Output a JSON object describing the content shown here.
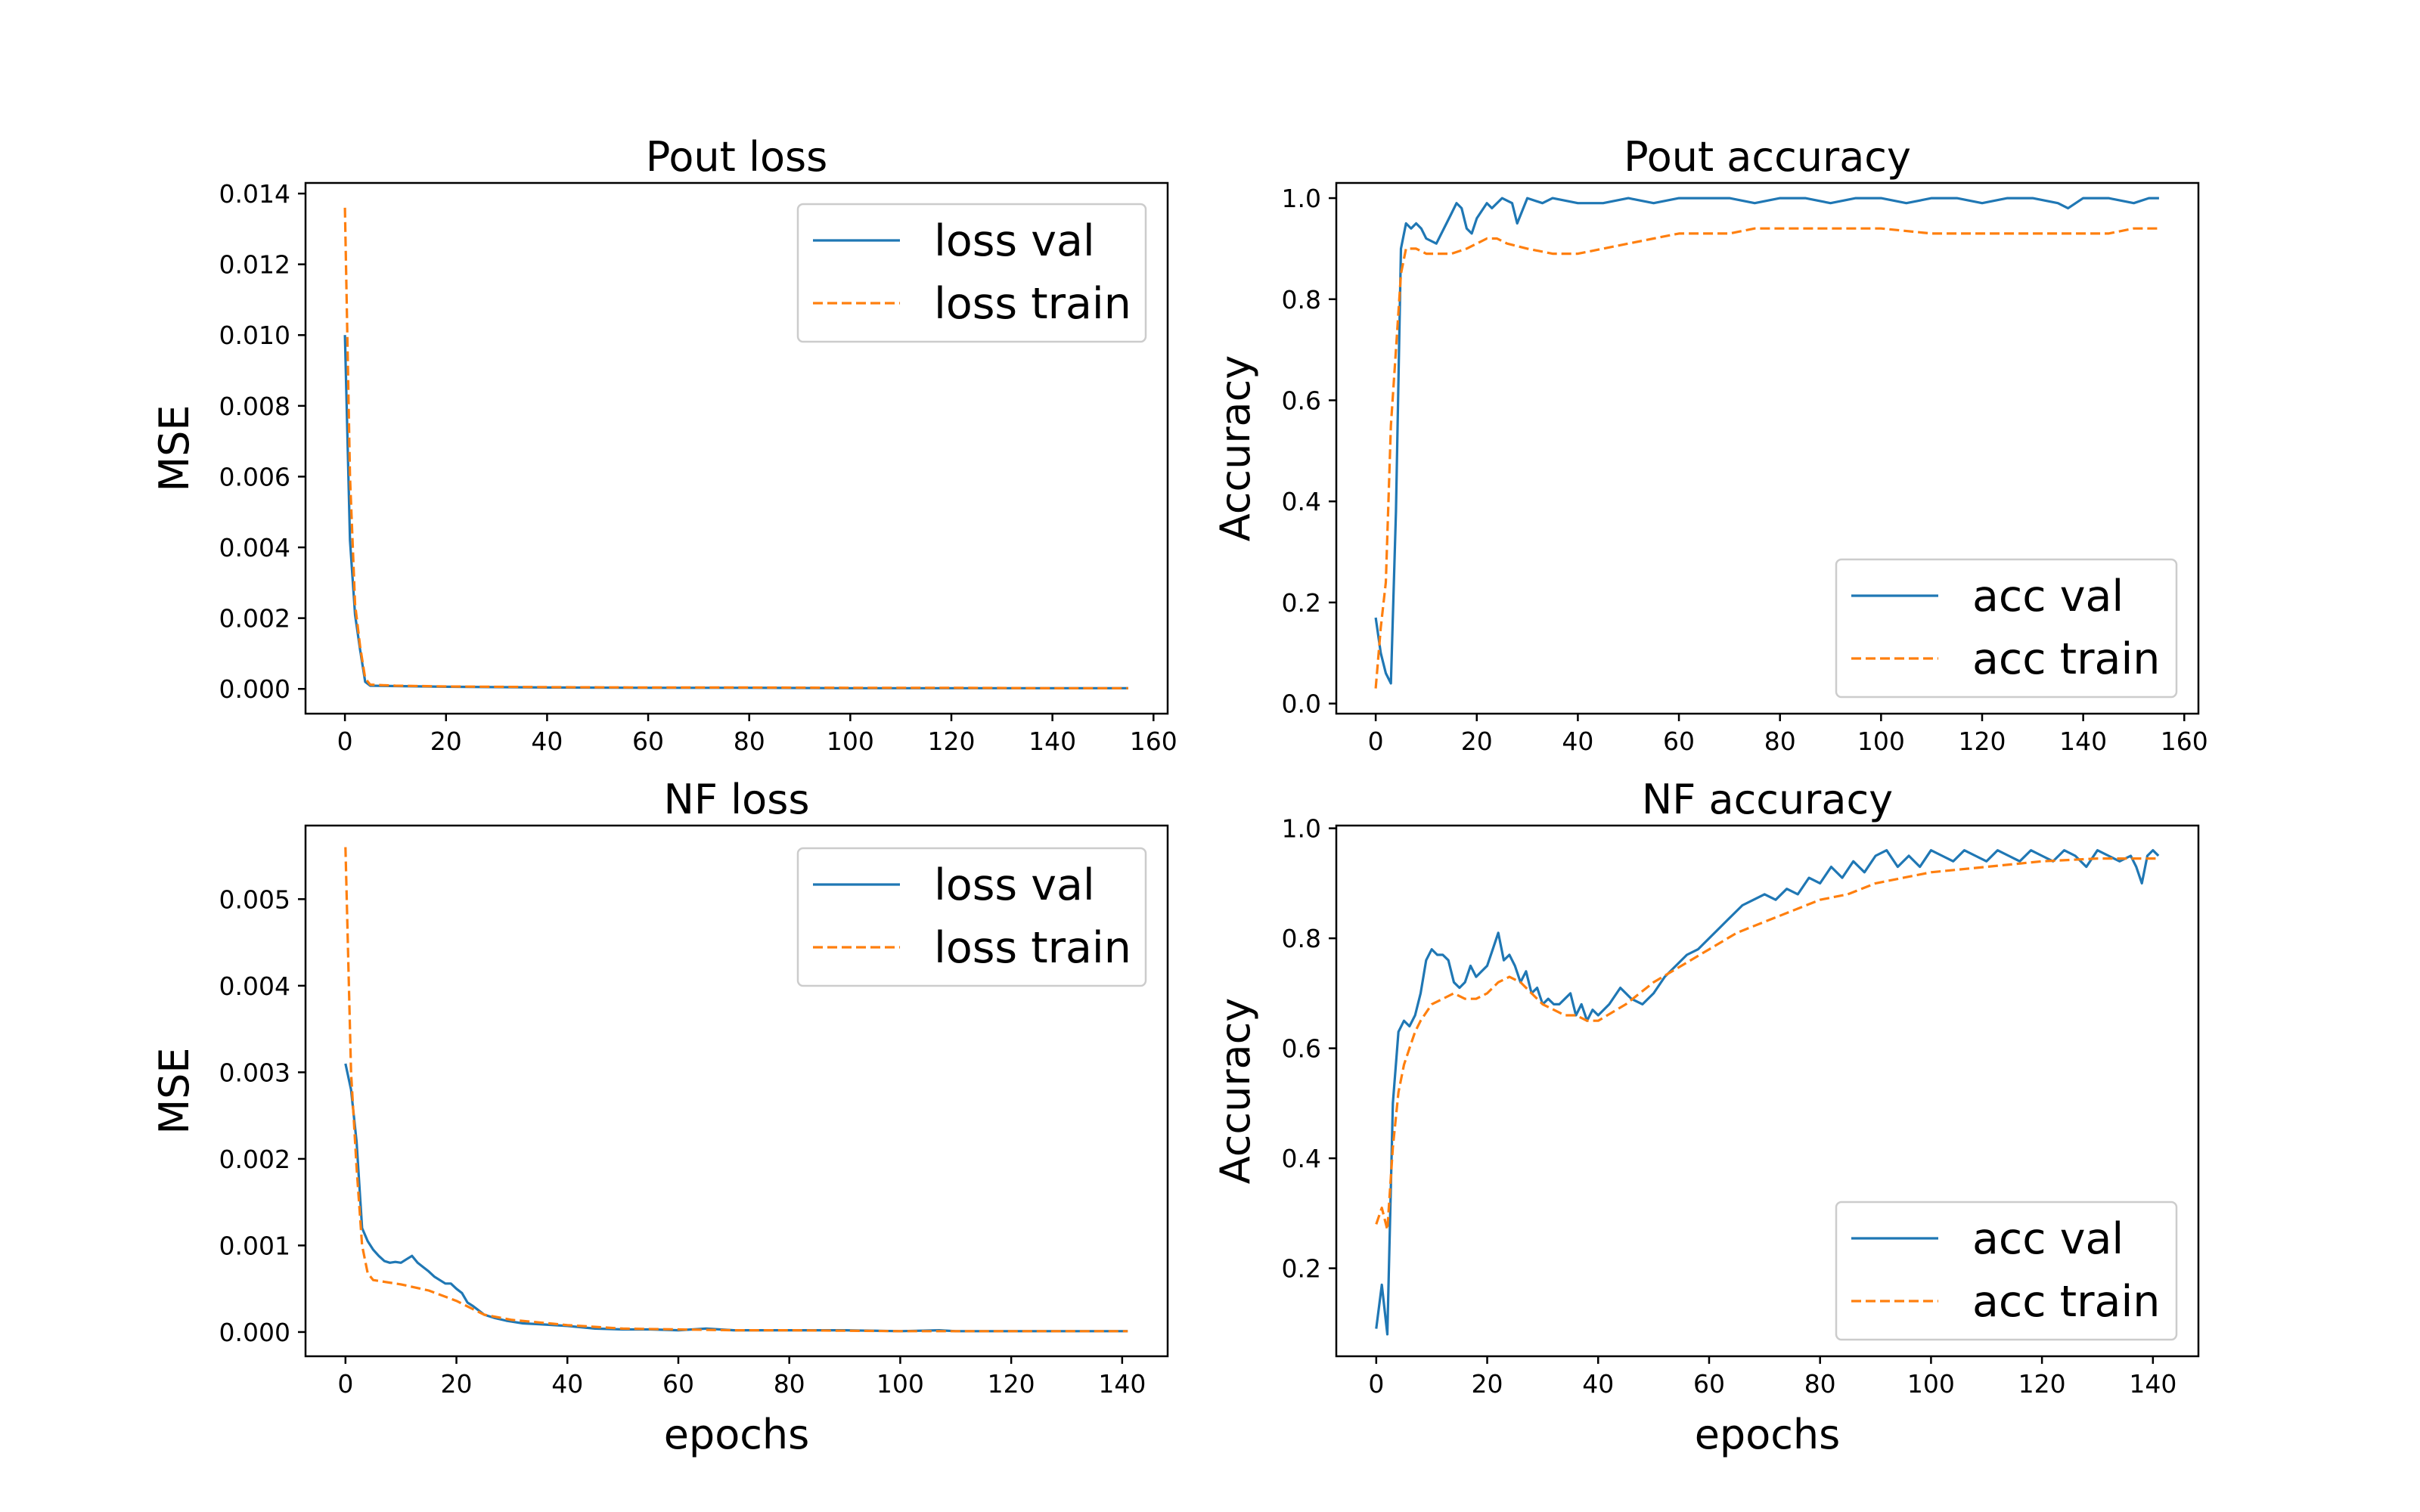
{
  "colors": {
    "val": "#1f77b4",
    "train": "#ff7f0e"
  },
  "chart_data": [
    {
      "type": "line",
      "title": "Pout loss",
      "xlabel": "",
      "ylabel": "MSE",
      "xlim": [
        -7.8,
        162.8
      ],
      "ylim": [
        -0.0007,
        0.0143
      ],
      "xticks": [
        0,
        20,
        40,
        60,
        80,
        100,
        120,
        140,
        160
      ],
      "yticks": [
        0.0,
        0.002,
        0.004,
        0.006,
        0.008,
        0.01,
        0.012,
        0.014
      ],
      "ytick_labels": [
        "0.000",
        "0.002",
        "0.004",
        "0.006",
        "0.008",
        "0.010",
        "0.012",
        "0.014"
      ],
      "legend_position": "upper right",
      "series": [
        {
          "name": "loss val",
          "style": "solid",
          "x": [
            0,
            1,
            2,
            3,
            4,
            5,
            10,
            20,
            40,
            60,
            80,
            100,
            120,
            140,
            155
          ],
          "y": [
            0.01,
            0.0042,
            0.0021,
            0.0011,
            0.0002,
            9e-05,
            8e-05,
            6e-05,
            4e-05,
            3e-05,
            3e-05,
            2e-05,
            2e-05,
            2e-05,
            2e-05
          ]
        },
        {
          "name": "loss train",
          "style": "dashed",
          "x": [
            0,
            1,
            2,
            3,
            4,
            5,
            10,
            20,
            40,
            60,
            80,
            100,
            120,
            140,
            155
          ],
          "y": [
            0.0136,
            0.006,
            0.0024,
            0.0012,
            0.0003,
            0.00012,
            9e-05,
            7e-05,
            5e-05,
            4e-05,
            4e-05,
            3e-05,
            3e-05,
            2e-05,
            2e-05
          ]
        }
      ]
    },
    {
      "type": "line",
      "title": "Pout accuracy",
      "xlabel": "",
      "ylabel": "Accuracy",
      "xlim": [
        -7.8,
        162.8
      ],
      "ylim": [
        -0.02,
        1.03
      ],
      "xticks": [
        0,
        20,
        40,
        60,
        80,
        100,
        120,
        140,
        160
      ],
      "yticks": [
        0.0,
        0.2,
        0.4,
        0.6,
        0.8,
        1.0
      ],
      "ytick_labels": [
        "0.0",
        "0.2",
        "0.4",
        "0.6",
        "0.8",
        "1.0"
      ],
      "legend_position": "lower right",
      "series": [
        {
          "name": "acc val",
          "style": "solid",
          "x": [
            0,
            1,
            2,
            3,
            4,
            5,
            6,
            7,
            8,
            9,
            10,
            12,
            14,
            15,
            16,
            17,
            18,
            19,
            20,
            22,
            23,
            25,
            27,
            28,
            30,
            33,
            35,
            40,
            45,
            50,
            55,
            60,
            65,
            70,
            75,
            80,
            85,
            90,
            95,
            100,
            105,
            110,
            115,
            120,
            125,
            130,
            135,
            137,
            140,
            145,
            150,
            153,
            155
          ],
          "y": [
            0.17,
            0.1,
            0.06,
            0.04,
            0.38,
            0.9,
            0.95,
            0.94,
            0.95,
            0.94,
            0.92,
            0.91,
            0.95,
            0.97,
            0.99,
            0.98,
            0.94,
            0.93,
            0.96,
            0.99,
            0.98,
            1.0,
            0.99,
            0.95,
            1.0,
            0.99,
            1.0,
            0.99,
            0.99,
            1.0,
            0.99,
            1.0,
            1.0,
            1.0,
            0.99,
            1.0,
            1.0,
            0.99,
            1.0,
            1.0,
            0.99,
            1.0,
            1.0,
            0.99,
            1.0,
            1.0,
            0.99,
            0.98,
            1.0,
            1.0,
            0.99,
            1.0,
            1.0
          ]
        },
        {
          "name": "acc train",
          "style": "dashed",
          "x": [
            0,
            1,
            2,
            3,
            4,
            5,
            6,
            7,
            8,
            10,
            12,
            15,
            18,
            20,
            22,
            24,
            26,
            30,
            35,
            40,
            45,
            50,
            55,
            60,
            65,
            70,
            75,
            80,
            85,
            90,
            100,
            110,
            120,
            130,
            140,
            145,
            150,
            155
          ],
          "y": [
            0.03,
            0.15,
            0.24,
            0.55,
            0.7,
            0.85,
            0.9,
            0.9,
            0.9,
            0.89,
            0.89,
            0.89,
            0.9,
            0.91,
            0.92,
            0.92,
            0.91,
            0.9,
            0.89,
            0.89,
            0.9,
            0.91,
            0.92,
            0.93,
            0.93,
            0.93,
            0.94,
            0.94,
            0.94,
            0.94,
            0.94,
            0.93,
            0.93,
            0.93,
            0.93,
            0.93,
            0.94,
            0.94
          ]
        }
      ]
    },
    {
      "type": "line",
      "title": "NF loss",
      "xlabel": "epochs",
      "ylabel": "MSE",
      "xlim": [
        -7.2,
        148.2
      ],
      "ylim": [
        -0.00028,
        0.00585
      ],
      "xticks": [
        0,
        20,
        40,
        60,
        80,
        100,
        120,
        140
      ],
      "yticks": [
        0.0,
        0.001,
        0.002,
        0.003,
        0.004,
        0.005
      ],
      "ytick_labels": [
        "0.000",
        "0.001",
        "0.002",
        "0.003",
        "0.004",
        "0.005"
      ],
      "legend_position": "upper right",
      "series": [
        {
          "name": "loss val",
          "style": "solid",
          "x": [
            0,
            1,
            2,
            3,
            4,
            5,
            6,
            7,
            8,
            9,
            10,
            11,
            12,
            13,
            14,
            15,
            16,
            17,
            18,
            19,
            20,
            21,
            22,
            23,
            24,
            25,
            27,
            29,
            30,
            32,
            35,
            40,
            45,
            50,
            55,
            60,
            65,
            70,
            80,
            90,
            100,
            107,
            110,
            120,
            130,
            141
          ],
          "y": [
            0.0031,
            0.0028,
            0.0022,
            0.0012,
            0.00105,
            0.00095,
            0.00088,
            0.00082,
            0.0008,
            0.00081,
            0.0008,
            0.00084,
            0.00088,
            0.0008,
            0.00075,
            0.0007,
            0.00064,
            0.0006,
            0.00056,
            0.00056,
            0.0005,
            0.00045,
            0.00034,
            0.0003,
            0.00025,
            0.0002,
            0.00016,
            0.00013,
            0.00012,
            0.0001,
            9e-05,
            7e-05,
            4e-05,
            3e-05,
            3e-05,
            2e-05,
            4e-05,
            2e-05,
            2e-05,
            2e-05,
            1e-05,
            2e-05,
            1e-05,
            1e-05,
            1e-05,
            1e-05
          ]
        },
        {
          "name": "loss train",
          "style": "dashed",
          "x": [
            0,
            1,
            2,
            3,
            4,
            5,
            10,
            15,
            20,
            25,
            30,
            35,
            40,
            45,
            50,
            60,
            70,
            80,
            100,
            120,
            141
          ],
          "y": [
            0.0056,
            0.003,
            0.0019,
            0.001,
            0.00068,
            0.0006,
            0.00055,
            0.00048,
            0.00036,
            0.0002,
            0.00014,
            0.00011,
            8e-05,
            6e-05,
            4e-05,
            3e-05,
            2e-05,
            2e-05,
            1e-05,
            1e-05,
            1e-05
          ]
        }
      ]
    },
    {
      "type": "line",
      "title": "NF accuracy",
      "xlabel": "epochs",
      "ylabel": "Accuracy",
      "xlim": [
        -7.2,
        148.2
      ],
      "ylim": [
        0.04,
        1.005
      ],
      "xticks": [
        0,
        20,
        40,
        60,
        80,
        100,
        120,
        140
      ],
      "yticks": [
        0.2,
        0.4,
        0.6,
        0.8,
        1.0
      ],
      "ytick_labels": [
        "0.2",
        "0.4",
        "0.6",
        "0.8",
        "1.0"
      ],
      "legend_position": "lower right",
      "series": [
        {
          "name": "acc val",
          "style": "solid",
          "x": [
            0,
            1,
            2,
            3,
            4,
            5,
            6,
            7,
            8,
            9,
            10,
            11,
            12,
            13,
            14,
            15,
            16,
            17,
            18,
            19,
            20,
            21,
            22,
            23,
            24,
            25,
            26,
            27,
            28,
            29,
            30,
            31,
            32,
            33,
            34,
            35,
            36,
            37,
            38,
            39,
            40,
            42,
            44,
            46,
            48,
            50,
            52,
            54,
            56,
            58,
            60,
            62,
            64,
            66,
            68,
            70,
            72,
            74,
            76,
            78,
            80,
            82,
            84,
            86,
            88,
            90,
            92,
            94,
            96,
            98,
            100,
            102,
            104,
            106,
            108,
            110,
            112,
            114,
            116,
            118,
            120,
            122,
            124,
            126,
            128,
            130,
            132,
            134,
            136,
            137,
            138,
            139,
            140,
            141
          ],
          "y": [
            0.09,
            0.17,
            0.08,
            0.5,
            0.63,
            0.65,
            0.64,
            0.66,
            0.7,
            0.76,
            0.78,
            0.77,
            0.77,
            0.76,
            0.72,
            0.71,
            0.72,
            0.75,
            0.73,
            0.74,
            0.75,
            0.78,
            0.81,
            0.76,
            0.77,
            0.75,
            0.72,
            0.74,
            0.7,
            0.71,
            0.68,
            0.69,
            0.68,
            0.68,
            0.69,
            0.7,
            0.66,
            0.68,
            0.65,
            0.67,
            0.66,
            0.68,
            0.71,
            0.69,
            0.68,
            0.7,
            0.73,
            0.75,
            0.77,
            0.78,
            0.8,
            0.82,
            0.84,
            0.86,
            0.87,
            0.88,
            0.87,
            0.89,
            0.88,
            0.91,
            0.9,
            0.93,
            0.91,
            0.94,
            0.92,
            0.95,
            0.96,
            0.93,
            0.95,
            0.93,
            0.96,
            0.95,
            0.94,
            0.96,
            0.95,
            0.94,
            0.96,
            0.95,
            0.94,
            0.96,
            0.95,
            0.94,
            0.96,
            0.95,
            0.93,
            0.96,
            0.95,
            0.94,
            0.95,
            0.93,
            0.9,
            0.95,
            0.96,
            0.95
          ]
        },
        {
          "name": "acc train",
          "style": "dashed",
          "x": [
            0,
            1,
            2,
            3,
            4,
            5,
            6,
            7,
            8,
            10,
            12,
            14,
            16,
            18,
            20,
            22,
            24,
            26,
            28,
            30,
            32,
            34,
            36,
            38,
            40,
            45,
            50,
            55,
            60,
            65,
            70,
            75,
            80,
            85,
            90,
            95,
            100,
            110,
            120,
            130,
            141
          ],
          "y": [
            0.28,
            0.31,
            0.27,
            0.42,
            0.52,
            0.57,
            0.6,
            0.63,
            0.65,
            0.68,
            0.69,
            0.7,
            0.69,
            0.69,
            0.7,
            0.72,
            0.73,
            0.72,
            0.7,
            0.68,
            0.67,
            0.66,
            0.66,
            0.65,
            0.65,
            0.68,
            0.72,
            0.75,
            0.78,
            0.81,
            0.83,
            0.85,
            0.87,
            0.88,
            0.9,
            0.91,
            0.92,
            0.93,
            0.94,
            0.945,
            0.945
          ]
        }
      ]
    }
  ]
}
